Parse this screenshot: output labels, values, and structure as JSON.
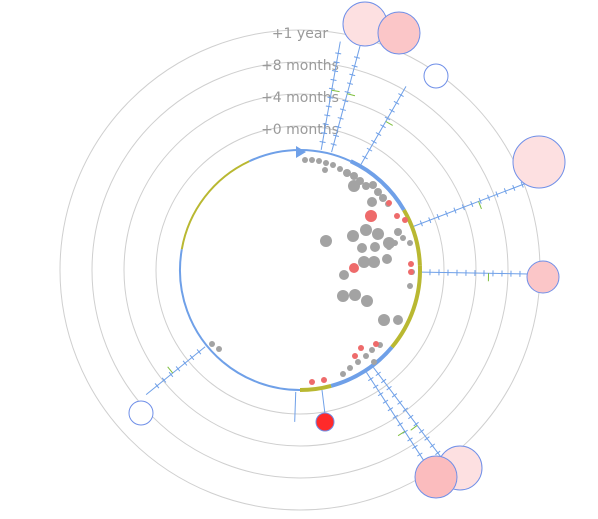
{
  "rings": {
    "labels": [
      "+0 months",
      "+4 months",
      "+8 months",
      "+1 year"
    ]
  },
  "colors": {
    "ring": "#cfcfcf",
    "label": "#9a9a9a",
    "arc_blue": "#6fa0e8",
    "arc_olive": "#b9b831",
    "dot_gray": "#a3a3a3",
    "dot_red": "#ee6b6b",
    "bubble_pink": "#fde0e1",
    "bubble_pink_dark": "#fbc6c8",
    "bubble_stroke": "#6f8fe8",
    "highlight_red": "#ff2a2a"
  },
  "timeline": {
    "start_arrow": "triangle-marker"
  }
}
